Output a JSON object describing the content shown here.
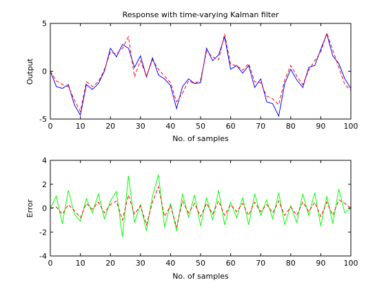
{
  "figure": {
    "background": "#ffffff"
  },
  "chart_data": [
    {
      "type": "line",
      "title": "Response with time-varying Kalman filter",
      "xlabel": "No. of samples",
      "ylabel": "Output",
      "xlim": [
        0,
        100
      ],
      "ylim": [
        -5,
        5
      ],
      "xticks": [
        0,
        10,
        20,
        30,
        40,
        50,
        60,
        70,
        80,
        90,
        100
      ],
      "yticks": [
        -5,
        0,
        5
      ],
      "grid": false,
      "legend": "none",
      "series": [
        {
          "color": "#0000ff",
          "style": "solid",
          "x": [
            0,
            2,
            4,
            6,
            8,
            10,
            12,
            14,
            16,
            18,
            20,
            22,
            24,
            26,
            28,
            30,
            32,
            34,
            36,
            38,
            40,
            42,
            44,
            46,
            48,
            50,
            52,
            54,
            56,
            58,
            60,
            62,
            64,
            66,
            68,
            70,
            72,
            74,
            76,
            78,
            80,
            82,
            84,
            86,
            88,
            90,
            92,
            94,
            96,
            98,
            100
          ],
          "y": [
            0,
            -1.6,
            -1.8,
            -1.4,
            -3.5,
            -4.6,
            -1.4,
            -1.9,
            -1.3,
            0,
            2.4,
            1.5,
            2.8,
            2.4,
            0.4,
            1.6,
            -0.6,
            1.4,
            -0.4,
            -0.8,
            -1.5,
            -3.9,
            -1.6,
            -0.8,
            -1.3,
            -1.2,
            2.4,
            1.1,
            1.7,
            3.6,
            0.2,
            0.6,
            -0.2,
            0.6,
            -1.7,
            -0.8,
            -3.2,
            -3.4,
            -4.7,
            -1.3,
            0.2,
            -0.9,
            -1.7,
            0.4,
            0.6,
            2.3,
            3.9,
            1.6,
            0.8,
            -0.8,
            -1.8
          ]
        },
        {
          "color": "#ff0000",
          "style": "dashed",
          "x": [
            0,
            2,
            4,
            6,
            8,
            10,
            12,
            14,
            16,
            18,
            20,
            22,
            24,
            26,
            28,
            30,
            32,
            34,
            36,
            38,
            40,
            42,
            44,
            46,
            48,
            50,
            52,
            54,
            56,
            58,
            60,
            62,
            64,
            66,
            68,
            70,
            72,
            74,
            76,
            78,
            80,
            82,
            84,
            86,
            88,
            90,
            92,
            94,
            96,
            98,
            100
          ],
          "y": [
            0,
            -1.0,
            -1.4,
            -1.6,
            -3.0,
            -4.2,
            -1.1,
            -1.6,
            -1.1,
            0.2,
            2.0,
            1.8,
            2.4,
            3.6,
            -0.6,
            1.1,
            -0.5,
            1.2,
            0.2,
            -0.5,
            -1.2,
            -3.2,
            -2.3,
            -1.0,
            -1.3,
            -0.9,
            2.1,
            1.5,
            1.2,
            3.9,
            0.7,
            0.6,
            0.1,
            0.8,
            -1.1,
            -1.2,
            -2.6,
            -2.9,
            -3.5,
            -0.9,
            0.6,
            -0.5,
            -1.4,
            0.1,
            1.1,
            2.0,
            4.0,
            2.2,
            0.4,
            -1.4,
            -2.0
          ]
        }
      ]
    },
    {
      "type": "line",
      "title": "",
      "xlabel": "No. of samples",
      "ylabel": "Error",
      "xlim": [
        0,
        100
      ],
      "ylim": [
        -4,
        4
      ],
      "xticks": [
        0,
        10,
        20,
        30,
        40,
        50,
        60,
        70,
        80,
        90,
        100
      ],
      "yticks": [
        -4,
        -2,
        0,
        2,
        4
      ],
      "grid": false,
      "legend": "none",
      "series": [
        {
          "color": "#00ff00",
          "style": "solid",
          "x": [
            0,
            2,
            4,
            6,
            8,
            10,
            12,
            14,
            16,
            18,
            20,
            22,
            24,
            26,
            28,
            30,
            32,
            34,
            36,
            38,
            40,
            42,
            44,
            46,
            48,
            50,
            52,
            54,
            56,
            58,
            60,
            62,
            64,
            66,
            68,
            70,
            72,
            74,
            76,
            78,
            80,
            82,
            84,
            86,
            88,
            90,
            92,
            94,
            96,
            98,
            100
          ],
          "y": [
            0,
            1.0,
            -1.3,
            1.5,
            -0.5,
            -1.1,
            0.8,
            -0.4,
            1.2,
            -0.9,
            0.6,
            1.4,
            -2.4,
            2.7,
            -1.2,
            0.3,
            -1.9,
            1.0,
            2.8,
            -1.6,
            0.4,
            -1.9,
            1.2,
            -0.8,
            1.1,
            -1.5,
            0.9,
            -1.0,
            1.5,
            -1.4,
            0.5,
            -0.8,
            0.9,
            -1.4,
            1.2,
            -0.6,
            0.7,
            -0.9,
            1.3,
            -1.4,
            0.2,
            -1.2,
            1.2,
            -0.6,
            1.3,
            -1.5,
            1.0,
            -1.3,
            1.6,
            -0.4,
            0.0
          ]
        },
        {
          "color": "#ff0000",
          "style": "dashed",
          "x": [
            0,
            2,
            4,
            6,
            8,
            10,
            12,
            14,
            16,
            18,
            20,
            22,
            24,
            26,
            28,
            30,
            32,
            34,
            36,
            38,
            40,
            42,
            44,
            46,
            48,
            50,
            52,
            54,
            56,
            58,
            60,
            62,
            64,
            66,
            68,
            70,
            72,
            74,
            76,
            78,
            80,
            82,
            84,
            86,
            88,
            90,
            92,
            94,
            96,
            98,
            100
          ],
          "y": [
            0,
            0.1,
            -0.5,
            0.3,
            -0.2,
            -0.8,
            0.4,
            -0.1,
            0.5,
            -0.4,
            0.3,
            0.6,
            -1.0,
            1.1,
            -0.5,
            0.2,
            -1.4,
            0.5,
            1.8,
            -0.7,
            0.2,
            -1.6,
            0.6,
            -0.4,
            0.4,
            -0.7,
            0.4,
            -0.5,
            0.6,
            -0.6,
            0.3,
            -0.3,
            0.4,
            -0.6,
            0.5,
            -0.3,
            0.3,
            -0.4,
            0.6,
            -0.6,
            0.1,
            -0.6,
            0.5,
            -0.3,
            0.5,
            -0.7,
            0.5,
            -0.6,
            0.7,
            0.4,
            0.0
          ]
        }
      ]
    }
  ]
}
